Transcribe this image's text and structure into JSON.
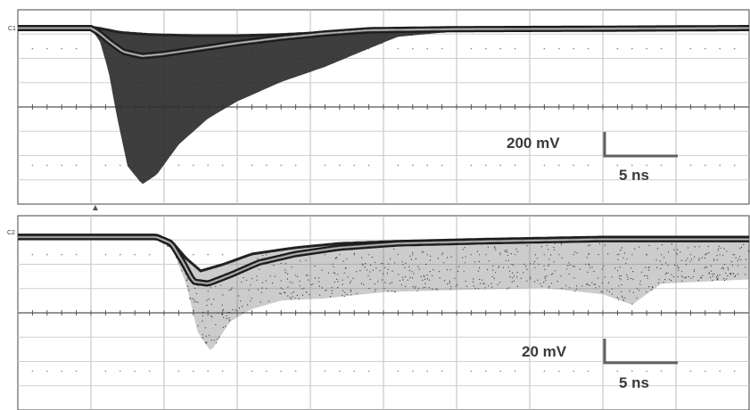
{
  "chart_data": [
    {
      "type": "line",
      "channel_label": "C1",
      "grid": true,
      "x_divisions": 10,
      "y_divisions": 8,
      "vertical_scale": {
        "label": "200 mV",
        "value": 200,
        "unit": "mV"
      },
      "horizontal_scale": {
        "label": "5 ns",
        "value": 5,
        "unit": "ns"
      },
      "x_unit": "ns",
      "y_unit": "mV",
      "ylim": [
        -800,
        80
      ],
      "xlim": [
        0,
        50
      ],
      "trigger_marker_ns": 5.3,
      "series": [
        {
          "role": "baseline-flat",
          "x": [
            0,
            5,
            5.5,
            6.2,
            7.2,
            8.5,
            10,
            12,
            15,
            18,
            21,
            24,
            30,
            40,
            50
          ],
          "y": [
            0,
            0,
            -20,
            -60,
            -110,
            -130,
            -120,
            -100,
            -70,
            -45,
            -25,
            -10,
            -5,
            -3,
            0
          ]
        },
        {
          "role": "envelope-upper",
          "x": [
            0,
            5,
            5.5,
            7,
            9,
            12,
            15,
            18,
            21,
            24,
            27,
            30,
            40,
            50
          ],
          "y": [
            5,
            5,
            0,
            -20,
            -30,
            -35,
            -35,
            -30,
            -20,
            -12,
            -6,
            -2,
            -2,
            0
          ]
        },
        {
          "role": "envelope-lower",
          "x": [
            0,
            5,
            5.6,
            6.2,
            6.8,
            7.5,
            8.5,
            9.5,
            11,
            13,
            15,
            18,
            21,
            24,
            26,
            30,
            40,
            50
          ],
          "y": [
            -5,
            -5,
            -60,
            -200,
            -420,
            -640,
            -725,
            -680,
            -540,
            -420,
            -340,
            -250,
            -180,
            -95,
            -40,
            -15,
            -10,
            -5
          ]
        }
      ]
    },
    {
      "type": "line",
      "channel_label": "C2",
      "grid": true,
      "x_divisions": 10,
      "y_divisions": 8,
      "vertical_scale": {
        "label": "20 mV",
        "value": 20,
        "unit": "mV"
      },
      "horizontal_scale": {
        "label": "5 ns",
        "value": 5,
        "unit": "ns"
      },
      "x_unit": "ns",
      "y_unit": "mV",
      "ylim": [
        -80,
        8
      ],
      "xlim": [
        0,
        50
      ],
      "series": [
        {
          "role": "main-band",
          "x": [
            0,
            9.5,
            10.5,
            11.3,
            12,
            13,
            14.5,
            16.5,
            19,
            22,
            26,
            32,
            40,
            50
          ],
          "y": [
            0,
            0,
            -3,
            -12,
            -21,
            -22,
            -18,
            -12,
            -8,
            -5,
            -3,
            -2,
            -1,
            -1
          ]
        },
        {
          "role": "envelope-upper",
          "x": [
            0,
            9.5,
            10.5,
            11.5,
            12.5,
            14,
            16,
            19,
            22,
            26,
            32,
            40,
            50
          ],
          "y": [
            1,
            1,
            -2,
            -10,
            -16,
            -13,
            -8,
            -5,
            -3,
            -2,
            -1,
            0,
            0
          ]
        },
        {
          "role": "envelope-lower",
          "x": [
            0,
            9.5,
            10.6,
            11.5,
            12.3,
            13.2,
            14.5,
            16,
            18,
            21,
            25,
            30,
            36,
            40,
            42,
            44,
            50
          ],
          "y": [
            -1,
            -1,
            -6,
            -22,
            -45,
            -54,
            -40,
            -34,
            -30,
            -29,
            -26,
            -25,
            -24,
            -27,
            -32,
            -22,
            -20
          ]
        }
      ]
    }
  ]
}
